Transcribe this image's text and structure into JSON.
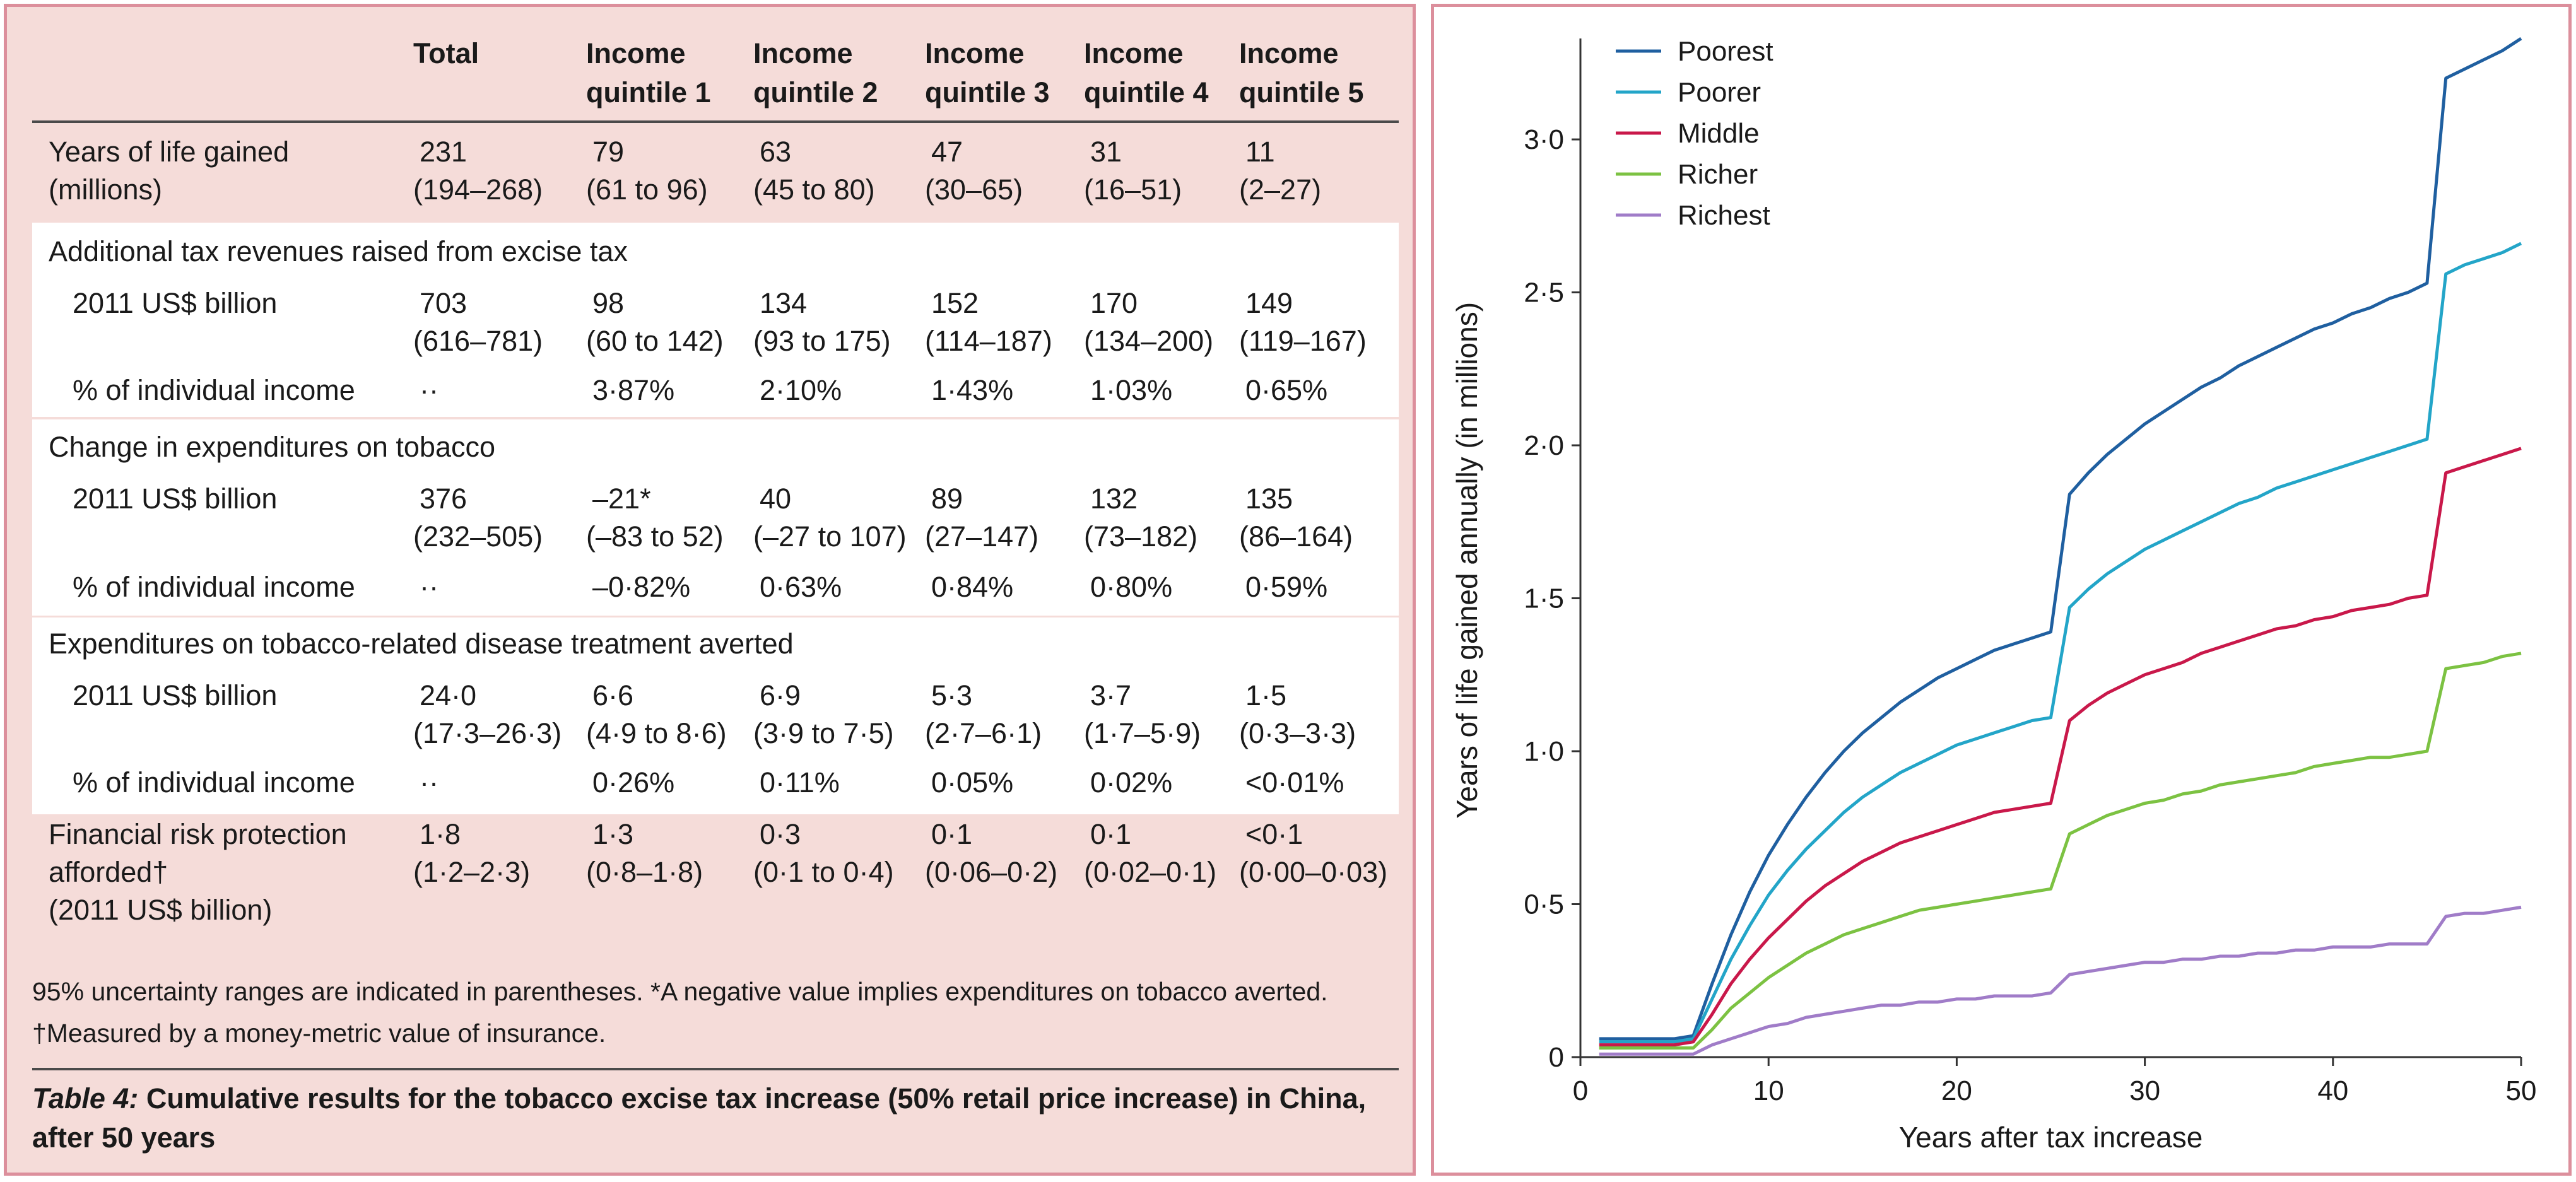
{
  "table": {
    "headers": [
      {
        "line1": "Total",
        "line2": ""
      },
      {
        "line1": "Income",
        "line2": "quintile 1"
      },
      {
        "line1": "Income",
        "line2": "quintile 2"
      },
      {
        "line1": "Income",
        "line2": "quintile 3"
      },
      {
        "line1": "Income",
        "line2": "quintile 4"
      },
      {
        "line1": "Income",
        "line2": "quintile 5"
      }
    ],
    "rows": [
      {
        "label": [
          "Years of life gained",
          "(millions)"
        ],
        "indent": false,
        "shaded": false,
        "cells": [
          [
            "231",
            "(194–268)"
          ],
          [
            "79",
            "(61 to 96)"
          ],
          [
            "63",
            "(45 to 80)"
          ],
          [
            "47",
            "(30–65)"
          ],
          [
            "31",
            "(16–51)"
          ],
          [
            "11",
            "(2–27)"
          ]
        ]
      },
      {
        "section": "Additional tax revenues raised from excise tax"
      },
      {
        "label": [
          "2011 US$ billion"
        ],
        "indent": true,
        "cells": [
          [
            "703",
            "(616–781)"
          ],
          [
            "98",
            "(60 to 142)"
          ],
          [
            "134",
            "(93 to 175)"
          ],
          [
            "152",
            "(114–187)"
          ],
          [
            "170",
            "(134–200)"
          ],
          [
            "149",
            "(119–167)"
          ]
        ]
      },
      {
        "label": [
          "% of individual income"
        ],
        "indent": true,
        "cells": [
          [
            "··"
          ],
          [
            "3·87%"
          ],
          [
            "2·10%"
          ],
          [
            "1·43%"
          ],
          [
            "1·03%"
          ],
          [
            "0·65%"
          ]
        ]
      },
      {
        "section": "Change in expenditures on tobacco"
      },
      {
        "label": [
          "2011 US$ billion"
        ],
        "indent": true,
        "cells": [
          [
            "376",
            "(232–505)"
          ],
          [
            "–21*",
            "(–83 to 52)"
          ],
          [
            "40",
            "(–27 to 107)"
          ],
          [
            "89",
            "(27–147)"
          ],
          [
            "132",
            "(73–182)"
          ],
          [
            "135",
            "(86–164)"
          ]
        ]
      },
      {
        "label": [
          "% of individual income"
        ],
        "indent": true,
        "cells": [
          [
            "··"
          ],
          [
            "–0·82%"
          ],
          [
            "0·63%"
          ],
          [
            "0·84%"
          ],
          [
            "0·80%"
          ],
          [
            "0·59%"
          ]
        ]
      },
      {
        "section": "Expenditures on tobacco-related disease treatment averted"
      },
      {
        "label": [
          "2011 US$ billion"
        ],
        "indent": true,
        "cells": [
          [
            "24·0",
            "(17·3–26·3)"
          ],
          [
            "6·6",
            "(4·9 to 8·6)"
          ],
          [
            "6·9",
            "(3·9 to 7·5)"
          ],
          [
            "5·3",
            "(2·7–6·1)"
          ],
          [
            "3·7",
            "(1·7–5·9)"
          ],
          [
            "1·5",
            "(0·3–3·3)"
          ]
        ]
      },
      {
        "label": [
          "% of individual income"
        ],
        "indent": true,
        "cells": [
          [
            "··"
          ],
          [
            "0·26%"
          ],
          [
            "0·11%"
          ],
          [
            "0·05%"
          ],
          [
            "0·02%"
          ],
          [
            "<0·01%"
          ]
        ]
      },
      {
        "label": [
          "Financial risk protection",
          "afforded†",
          "(2011 US$ billion)"
        ],
        "indent": false,
        "cells": [
          [
            "1·8",
            "(1·2–2·3)"
          ],
          [
            "1·3",
            "(0·8–1·8)"
          ],
          [
            "0·3",
            "(0·1 to 0·4)"
          ],
          [
            "0·1",
            "(0·06–0·2)"
          ],
          [
            "0·1",
            "(0·02–0·1)"
          ],
          [
            "<0·1",
            "(0·00–0·03)"
          ]
        ]
      }
    ],
    "footnotes": [
      "95% uncertainty ranges are indicated in parentheses. *A negative value implies expenditures on tobacco averted.",
      "†Measured by a money-metric value of insurance."
    ],
    "caption_label": "Table 4:",
    "caption_text": " Cumulative results for the tobacco excise tax increase (50% retail price increase) in China, after 50 years"
  },
  "chart_data": {
    "type": "line",
    "title": "",
    "xlabel": "Years after tax increase",
    "ylabel": "Years of life gained annually (in millions)",
    "xlim": [
      0,
      50
    ],
    "ylim": [
      0,
      3.3
    ],
    "x_ticks": [
      0,
      10,
      20,
      30,
      40,
      50
    ],
    "x_tick_labels": [
      "0",
      "10",
      "20",
      "30",
      "40",
      "50"
    ],
    "y_ticks": [
      0,
      0.5,
      1.0,
      1.5,
      2.0,
      2.5,
      3.0
    ],
    "y_tick_labels": [
      "0",
      "0·5",
      "1·0",
      "1·5",
      "2·0",
      "2·5",
      "3·0"
    ],
    "grid": false,
    "legend_position": "top-left",
    "x": [
      1,
      2,
      3,
      4,
      5,
      6,
      7,
      8,
      9,
      10,
      11,
      12,
      13,
      14,
      15,
      16,
      17,
      18,
      19,
      20,
      21,
      22,
      23,
      24,
      25,
      26,
      27,
      28,
      29,
      30,
      31,
      32,
      33,
      34,
      35,
      36,
      37,
      38,
      39,
      40,
      41,
      42,
      43,
      44,
      45,
      46,
      47,
      48,
      49,
      50
    ],
    "series": [
      {
        "name": "Poorest",
        "color": "#1f5fa0",
        "values": [
          0.06,
          0.06,
          0.06,
          0.06,
          0.06,
          0.07,
          0.24,
          0.4,
          0.54,
          0.66,
          0.76,
          0.85,
          0.93,
          1.0,
          1.06,
          1.11,
          1.16,
          1.2,
          1.24,
          1.27,
          1.3,
          1.33,
          1.35,
          1.37,
          1.39,
          1.84,
          1.91,
          1.97,
          2.02,
          2.07,
          2.11,
          2.15,
          2.19,
          2.22,
          2.26,
          2.29,
          2.32,
          2.35,
          2.38,
          2.4,
          2.43,
          2.45,
          2.48,
          2.5,
          2.53,
          3.2,
          3.23,
          3.26,
          3.29,
          3.33
        ]
      },
      {
        "name": "Poorer",
        "color": "#23a5c8",
        "values": [
          0.05,
          0.05,
          0.05,
          0.05,
          0.05,
          0.06,
          0.19,
          0.32,
          0.43,
          0.53,
          0.61,
          0.68,
          0.74,
          0.8,
          0.85,
          0.89,
          0.93,
          0.96,
          0.99,
          1.02,
          1.04,
          1.06,
          1.08,
          1.1,
          1.11,
          1.47,
          1.53,
          1.58,
          1.62,
          1.66,
          1.69,
          1.72,
          1.75,
          1.78,
          1.81,
          1.83,
          1.86,
          1.88,
          1.9,
          1.92,
          1.94,
          1.96,
          1.98,
          2.0,
          2.02,
          2.56,
          2.59,
          2.61,
          2.63,
          2.66
        ]
      },
      {
        "name": "Middle",
        "color": "#c9184a",
        "values": [
          0.04,
          0.04,
          0.04,
          0.04,
          0.04,
          0.05,
          0.14,
          0.24,
          0.32,
          0.39,
          0.45,
          0.51,
          0.56,
          0.6,
          0.64,
          0.67,
          0.7,
          0.72,
          0.74,
          0.76,
          0.78,
          0.8,
          0.81,
          0.82,
          0.83,
          1.1,
          1.15,
          1.19,
          1.22,
          1.25,
          1.27,
          1.29,
          1.32,
          1.34,
          1.36,
          1.38,
          1.4,
          1.41,
          1.43,
          1.44,
          1.46,
          1.47,
          1.48,
          1.5,
          1.51,
          1.91,
          1.93,
          1.95,
          1.97,
          1.99
        ]
      },
      {
        "name": "Richer",
        "color": "#7cc242",
        "values": [
          0.03,
          0.03,
          0.03,
          0.03,
          0.03,
          0.03,
          0.09,
          0.16,
          0.21,
          0.26,
          0.3,
          0.34,
          0.37,
          0.4,
          0.42,
          0.44,
          0.46,
          0.48,
          0.49,
          0.5,
          0.51,
          0.52,
          0.53,
          0.54,
          0.55,
          0.73,
          0.76,
          0.79,
          0.81,
          0.83,
          0.84,
          0.86,
          0.87,
          0.89,
          0.9,
          0.91,
          0.92,
          0.93,
          0.95,
          0.96,
          0.97,
          0.98,
          0.98,
          0.99,
          1.0,
          1.27,
          1.28,
          1.29,
          1.31,
          1.32
        ]
      },
      {
        "name": "Richest",
        "color": "#a07cc8",
        "values": [
          0.01,
          0.01,
          0.01,
          0.01,
          0.01,
          0.01,
          0.04,
          0.06,
          0.08,
          0.1,
          0.11,
          0.13,
          0.14,
          0.15,
          0.16,
          0.17,
          0.17,
          0.18,
          0.18,
          0.19,
          0.19,
          0.2,
          0.2,
          0.2,
          0.21,
          0.27,
          0.28,
          0.29,
          0.3,
          0.31,
          0.31,
          0.32,
          0.32,
          0.33,
          0.33,
          0.34,
          0.34,
          0.35,
          0.35,
          0.36,
          0.36,
          0.36,
          0.37,
          0.37,
          0.37,
          0.46,
          0.47,
          0.47,
          0.48,
          0.49
        ]
      }
    ]
  }
}
